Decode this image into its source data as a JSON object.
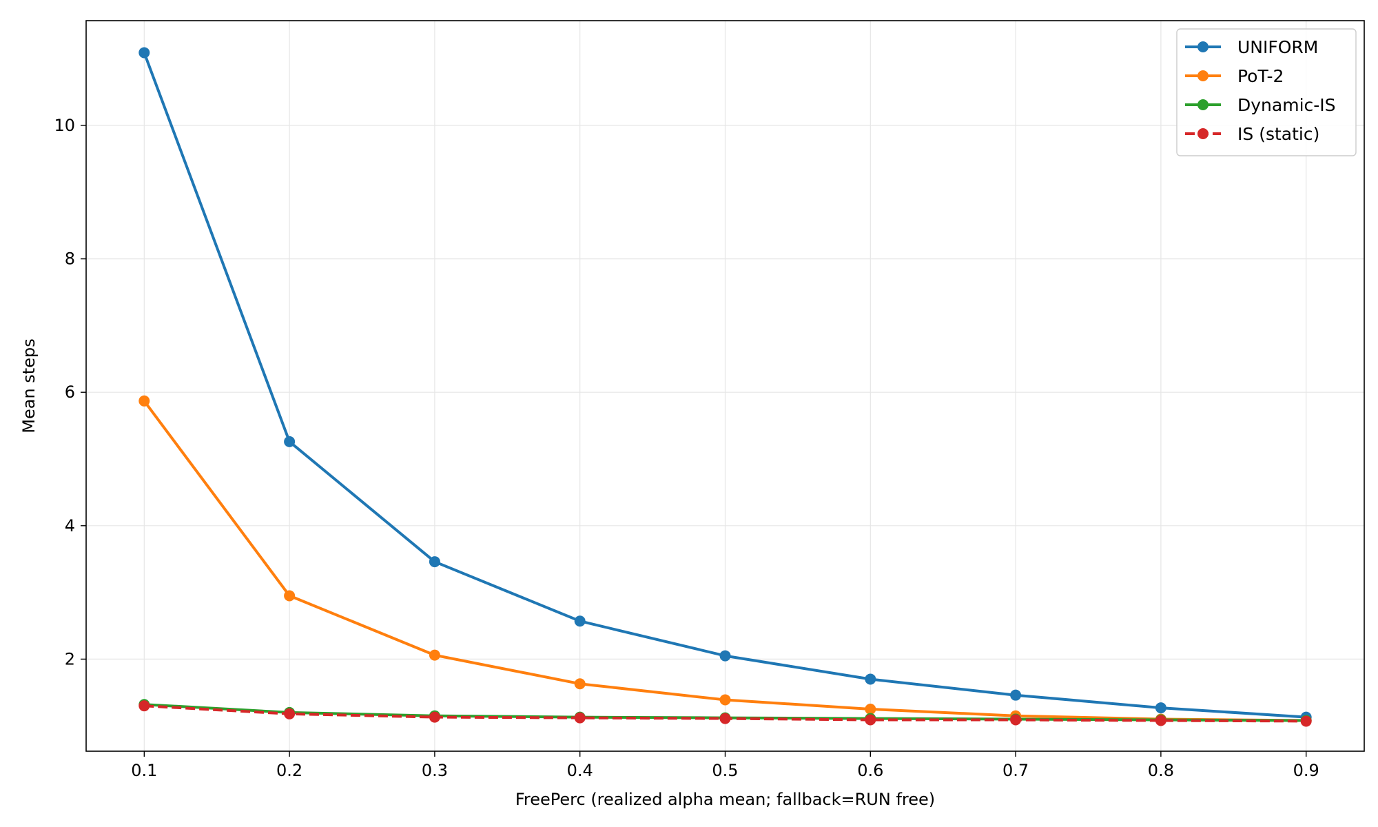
{
  "chart_data": {
    "type": "line",
    "title": "",
    "xlabel": "FreePerc (realized alpha mean; fallback=RUN free)",
    "ylabel": "Mean steps",
    "x": [
      0.1,
      0.2,
      0.3,
      0.4,
      0.5,
      0.6,
      0.7,
      0.8,
      0.9
    ],
    "xlim": [
      0.06,
      0.94
    ],
    "ylim": [
      0.62,
      11.57
    ],
    "xticks": [
      0.1,
      0.2,
      0.3,
      0.4,
      0.5,
      0.6,
      0.7,
      0.8,
      0.9
    ],
    "yticks": [
      2,
      4,
      6,
      8,
      10
    ],
    "grid": true,
    "legend_position": "top-right",
    "series": [
      {
        "name": "UNIFORM",
        "color": "#1f77b4",
        "dashed": false,
        "values": [
          11.09,
          5.26,
          3.46,
          2.57,
          2.05,
          1.7,
          1.46,
          1.27,
          1.13
        ]
      },
      {
        "name": "PoT-2",
        "color": "#ff7f0e",
        "dashed": false,
        "values": [
          5.87,
          2.95,
          2.06,
          1.63,
          1.39,
          1.25,
          1.15,
          1.1,
          1.08
        ]
      },
      {
        "name": "Dynamic-IS",
        "color": "#2ca02c",
        "dashed": false,
        "values": [
          1.32,
          1.2,
          1.15,
          1.13,
          1.12,
          1.11,
          1.1,
          1.09,
          1.08
        ]
      },
      {
        "name": "IS (static)",
        "color": "#d62728",
        "dashed": true,
        "values": [
          1.3,
          1.18,
          1.13,
          1.12,
          1.11,
          1.09,
          1.09,
          1.08,
          1.07
        ]
      }
    ]
  }
}
